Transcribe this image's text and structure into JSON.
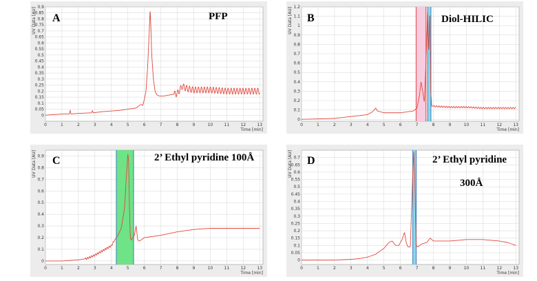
{
  "chart_data": [
    {
      "type": "line",
      "panel_letter": "A",
      "title": "PFP",
      "xlabel": "Time [min]",
      "ylabel": "UV Data [AU]",
      "xlim": [
        0,
        13.2
      ],
      "ylim": [
        -0.05,
        0.9
      ],
      "x_ticks": [
        0,
        1,
        2,
        3,
        4,
        5,
        6,
        7,
        8,
        9,
        10,
        11,
        12,
        13
      ],
      "y_ticks": [
        0,
        0.05,
        0.1,
        0.15,
        0.2,
        0.25,
        0.3,
        0.35,
        0.4,
        0.45,
        0.5,
        0.55,
        0.6,
        0.65,
        0.7,
        0.75,
        0.8,
        0.85,
        0.9
      ],
      "y_tick_labels": [
        "0",
        "0.05",
        "0.1",
        "0.15",
        "0.2",
        "0.25",
        "0.3",
        "0.35",
        "0.4",
        "0.45",
        "0.5",
        "0.55",
        "0.6",
        "0.65",
        "0.7",
        "0.75",
        "0.8",
        "0.85",
        "0.9"
      ],
      "highlights": [],
      "line_color": "#e0463c",
      "series": [
        {
          "x": [
            0,
            1,
            1.45,
            1.5,
            1.55,
            2,
            2.8,
            2.85,
            2.9,
            3.5,
            4.5,
            5,
            5.5,
            5.8,
            5.9,
            6.0,
            6.1,
            6.2,
            6.3,
            6.35,
            6.4,
            6.45,
            6.55,
            6.65,
            6.75,
            6.9,
            7.2,
            7.6,
            8.0,
            8.3,
            8.6,
            9.0,
            10,
            11,
            12,
            13
          ],
          "y": [
            0,
            0.01,
            0.01,
            0.04,
            0.01,
            0.015,
            0.02,
            0.04,
            0.02,
            0.03,
            0.04,
            0.05,
            0.06,
            0.09,
            0.08,
            0.13,
            0.2,
            0.4,
            0.7,
            0.88,
            0.72,
            0.5,
            0.3,
            0.2,
            0.17,
            0.16,
            0.16,
            0.17,
            0.18,
            0.24,
            0.22,
            0.21,
            0.21,
            0.2,
            0.2,
            0.2
          ]
        }
      ],
      "oscillation": {
        "from": 7.8,
        "to": 13,
        "amplitude": 0.025,
        "period": 0.18
      }
    },
    {
      "type": "line",
      "panel_letter": "B",
      "title": "Diol-HILIC",
      "xlabel": "Time [min]",
      "ylabel": "UV Data [AU]",
      "xlim": [
        0,
        13.2
      ],
      "ylim": [
        -0.02,
        1.2
      ],
      "x_ticks": [
        0,
        1,
        2,
        3,
        4,
        5,
        6,
        7,
        8,
        9,
        10,
        11,
        12,
        13
      ],
      "y_ticks": [
        0,
        0.1,
        0.2,
        0.3,
        0.4,
        0.5,
        0.6,
        0.7,
        0.8,
        0.9,
        1.0,
        1.1,
        1.2
      ],
      "y_tick_labels": [
        "0",
        "0.1",
        "0.2",
        "0.3",
        "0.4",
        "0.5",
        "0.6",
        "0.7",
        "0.8",
        "0.9",
        "1",
        "1.1",
        "1.2"
      ],
      "highlights": [
        {
          "from": 6.95,
          "to": 7.55,
          "color": "#f7c6dd",
          "edge": "#e0463c"
        },
        {
          "from": 7.65,
          "to": 7.85,
          "color": "#7fd6ea",
          "edge": "#3a7bbf"
        }
      ],
      "line_color": "#e0463c",
      "series": [
        {
          "x": [
            0,
            2,
            3,
            4,
            4.3,
            4.5,
            4.6,
            4.8,
            5,
            6,
            6.8,
            7.0,
            7.15,
            7.25,
            7.35,
            7.45,
            7.55,
            7.65,
            7.72,
            7.78,
            7.84,
            7.9,
            8.0,
            9,
            10,
            11,
            12,
            13
          ],
          "y": [
            0,
            0.01,
            0.03,
            0.05,
            0.08,
            0.12,
            0.09,
            0.08,
            0.07,
            0.07,
            0.09,
            0.12,
            0.25,
            0.4,
            0.3,
            0.18,
            0.6,
            1.18,
            0.7,
            1.18,
            0.3,
            0.14,
            0.14,
            0.13,
            0.13,
            0.12,
            0.12,
            0.12
          ]
        }
      ],
      "oscillation": {
        "from": 8.0,
        "to": 13,
        "amplitude": 0.008,
        "period": 0.15
      }
    },
    {
      "type": "line",
      "panel_letter": "C",
      "title": "2’ Ethyl pyridine 100Å",
      "xlabel": "Time [min]",
      "ylabel": "UV Data [AU]",
      "xlim": [
        0,
        13.2
      ],
      "ylim": [
        -0.03,
        0.95
      ],
      "x_ticks": [
        0,
        1,
        2,
        3,
        4,
        5,
        6,
        7,
        8,
        9,
        10,
        11,
        12,
        13
      ],
      "y_ticks": [
        0,
        0.1,
        0.2,
        0.3,
        0.4,
        0.5,
        0.6,
        0.7,
        0.8,
        0.9
      ],
      "y_tick_labels": [
        "0",
        "0.1",
        "0.2",
        "0.3",
        "0.4",
        "0.5",
        "0.6",
        "0.7",
        "0.8",
        "0.9"
      ],
      "highlights": [
        {
          "from": 4.3,
          "to": 5.35,
          "color": "#5fe07a",
          "edge": "#3a7bbf"
        }
      ],
      "line_color": "#e0463c",
      "series": [
        {
          "x": [
            0,
            1,
            2,
            2.5,
            3,
            3.5,
            4,
            4.2,
            4.4,
            4.6,
            4.8,
            4.9,
            5.0,
            5.05,
            5.1,
            5.15,
            5.2,
            5.3,
            5.4,
            5.5,
            5.6,
            5.7,
            5.8,
            6,
            7,
            8,
            9,
            10,
            11,
            12,
            13
          ],
          "y": [
            0,
            0,
            0.01,
            0.02,
            0.05,
            0.09,
            0.13,
            0.18,
            0.22,
            0.28,
            0.45,
            0.7,
            0.92,
            0.85,
            0.45,
            0.2,
            0.18,
            0.2,
            0.22,
            0.3,
            0.18,
            0.17,
            0.18,
            0.2,
            0.22,
            0.25,
            0.27,
            0.28,
            0.28,
            0.28,
            0.28
          ]
        }
      ],
      "oscillation": {
        "from": 2.4,
        "to": 4.2,
        "amplitude": 0.008,
        "period": 0.12
      }
    },
    {
      "type": "line",
      "panel_letter": "D",
      "title": "2’ Ethyl pyridine",
      "subtitle": "300Å",
      "xlabel": "Time [min]",
      "ylabel": "UV Data [AU]",
      "xlim": [
        0,
        13.2
      ],
      "ylim": [
        -0.03,
        0.75
      ],
      "x_ticks": [
        0,
        1,
        2,
        3,
        4,
        5,
        6,
        7,
        8,
        9,
        10,
        11,
        12,
        13
      ],
      "y_ticks": [
        0,
        0.05,
        0.1,
        0.15,
        0.2,
        0.25,
        0.3,
        0.35,
        0.4,
        0.45,
        0.5,
        0.55,
        0.6,
        0.65,
        0.7
      ],
      "y_tick_labels": [
        "0",
        "0.05",
        "0.1",
        "0.15",
        "0.2",
        "0.25",
        "0.3",
        "0.35",
        "0.4",
        "0.45",
        "0.5",
        "0.55",
        "0.6",
        "0.65",
        "0.7"
      ],
      "highlights": [
        {
          "from": 6.75,
          "to": 6.95,
          "color": "#7fd6ea",
          "edge": "#3a7bbf"
        }
      ],
      "line_color": "#e0463c",
      "series": [
        {
          "x": [
            0,
            2,
            3,
            3.5,
            4,
            4.5,
            5,
            5.3,
            5.5,
            5.7,
            5.9,
            6.1,
            6.25,
            6.35,
            6.45,
            6.6,
            6.75,
            6.82,
            6.88,
            6.95,
            7.05,
            7.3,
            7.6,
            7.8,
            8,
            8.5,
            9,
            10,
            11,
            12,
            12.5,
            13
          ],
          "y": [
            0,
            0,
            0.005,
            0.01,
            0.02,
            0.04,
            0.08,
            0.12,
            0.13,
            0.1,
            0.1,
            0.14,
            0.19,
            0.12,
            0.09,
            0.09,
            0.6,
            0.74,
            0.5,
            0.1,
            0.09,
            0.11,
            0.12,
            0.15,
            0.13,
            0.13,
            0.13,
            0.14,
            0.14,
            0.13,
            0.12,
            0.1
          ]
        }
      ],
      "oscillation": null
    }
  ]
}
